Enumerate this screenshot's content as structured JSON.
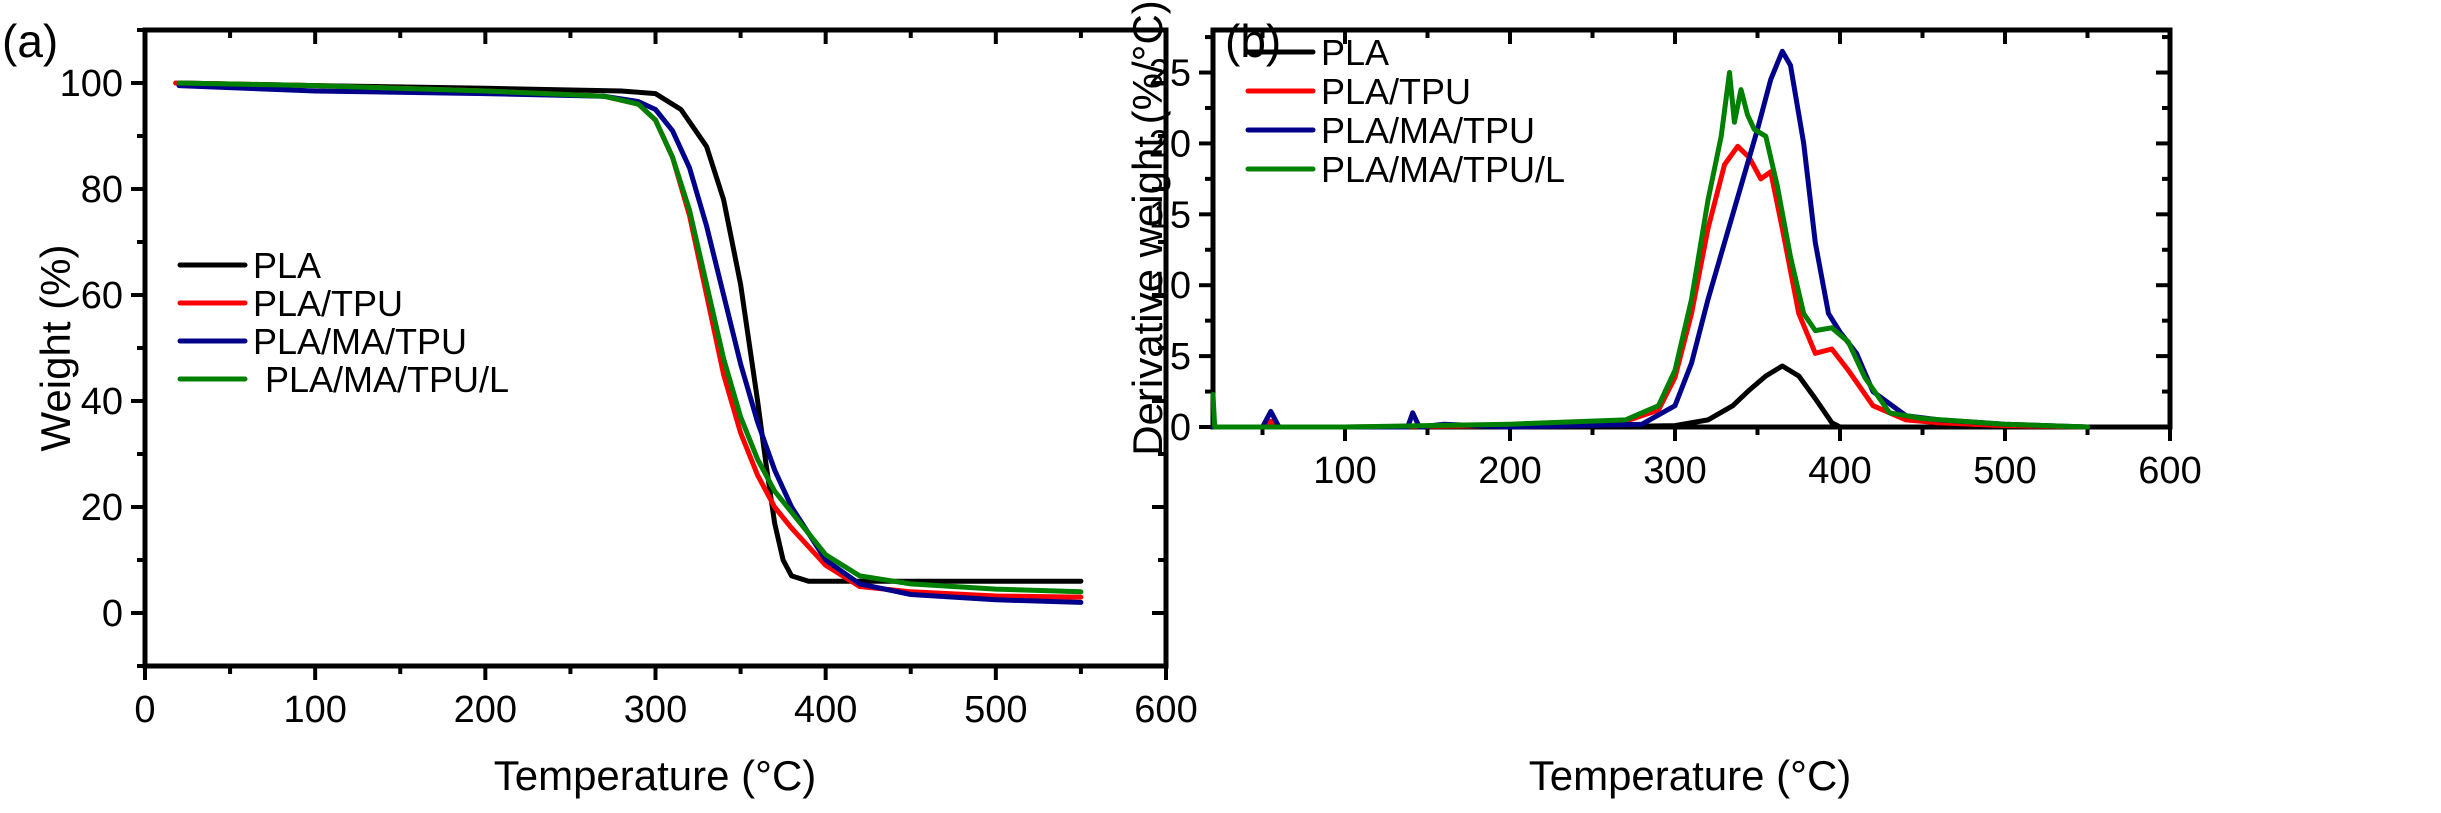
{
  "chart_data": [
    {
      "panel": "(a)",
      "type": "line",
      "title": "",
      "xlabel": "Temperature (°C)",
      "ylabel": "Weight (%)",
      "xlim": [
        0,
        600
      ],
      "ylim": [
        -10,
        110
      ],
      "xticks": [
        0,
        100,
        200,
        300,
        400,
        500,
        600
      ],
      "yticks": [
        0,
        20,
        40,
        60,
        80,
        100
      ],
      "grid": false,
      "legend_position": "bottom-left",
      "series": [
        {
          "name": "PLA",
          "color": "#000000",
          "x": [
            20,
            100,
            200,
            280,
            300,
            315,
            330,
            340,
            350,
            360,
            365,
            370,
            375,
            380,
            390,
            400,
            450,
            500,
            550
          ],
          "y": [
            100,
            99.5,
            99,
            98.5,
            98,
            95,
            88,
            78,
            62,
            40,
            28,
            17,
            10,
            7,
            6,
            6,
            6,
            6,
            6
          ]
        },
        {
          "name": "PLA/TPU",
          "color": "#ff0000",
          "x": [
            18,
            100,
            200,
            270,
            290,
            300,
            310,
            320,
            330,
            340,
            350,
            360,
            370,
            380,
            400,
            420,
            450,
            500,
            550
          ],
          "y": [
            100,
            99.5,
            98.5,
            97.5,
            96,
            93,
            86,
            75,
            60,
            45,
            34,
            26,
            20,
            16,
            9,
            5,
            4,
            3.2,
            3
          ]
        },
        {
          "name": "PLA/MA/TPU",
          "color": "#00008b",
          "x": [
            20,
            100,
            200,
            270,
            290,
            300,
            310,
            320,
            330,
            340,
            350,
            360,
            370,
            380,
            400,
            420,
            450,
            500,
            550
          ],
          "y": [
            99.5,
            98.5,
            98,
            97.5,
            96.5,
            95,
            91,
            84,
            73,
            60,
            47,
            36,
            27,
            20,
            10,
            5.5,
            3.5,
            2.5,
            2
          ]
        },
        {
          "name": "PLA/MA/TPU/L",
          "color": "#008000",
          "x": [
            20,
            100,
            200,
            270,
            290,
            300,
            310,
            320,
            330,
            340,
            350,
            360,
            370,
            380,
            400,
            420,
            450,
            500,
            550
          ],
          "y": [
            100,
            99.5,
            98.5,
            97.5,
            96,
            93,
            86,
            76,
            62,
            48,
            37,
            29,
            23,
            19,
            11,
            7,
            5.5,
            4.5,
            4
          ]
        }
      ]
    },
    {
      "panel": "(b)",
      "type": "line",
      "title": "",
      "xlabel": "Temperature (°C)",
      "ylabel": "Derivative weight (%/°C)",
      "xlim": [
        20,
        600
      ],
      "ylim": [
        0,
        28
      ],
      "xticks": [
        100,
        200,
        300,
        400,
        500,
        600
      ],
      "yticks": [
        0,
        5,
        10,
        15,
        20,
        25
      ],
      "grid": false,
      "legend_position": "top-left",
      "series": [
        {
          "name": "PLA",
          "color": "#000000",
          "x": [
            20,
            250,
            300,
            320,
            335,
            345,
            355,
            365,
            375,
            385,
            395,
            400,
            450,
            550
          ],
          "y": [
            0,
            0,
            0.1,
            0.5,
            1.5,
            2.6,
            3.6,
            4.3,
            3.6,
            2.0,
            0.3,
            0,
            0,
            0
          ]
        },
        {
          "name": "PLA/TPU",
          "color": "#ff0000",
          "x": [
            20,
            50,
            55,
            60,
            100,
            200,
            270,
            290,
            300,
            310,
            320,
            330,
            338,
            345,
            352,
            358,
            365,
            375,
            385,
            395,
            405,
            420,
            440,
            460,
            500,
            550
          ],
          "y": [
            0,
            0,
            0.4,
            0,
            0,
            0.1,
            0.4,
            1.2,
            3.5,
            8,
            14,
            18.5,
            19.8,
            19,
            17.5,
            18,
            14,
            8,
            5.2,
            5.5,
            4,
            1.5,
            0.5,
            0.3,
            0.1,
            0
          ]
        },
        {
          "name": "PLA/MA/TPU",
          "color": "#00008b",
          "x": [
            20,
            50,
            55,
            60,
            100,
            138,
            141,
            145,
            160,
            200,
            280,
            300,
            310,
            320,
            330,
            340,
            350,
            358,
            365,
            370,
            378,
            385,
            393,
            400,
            410,
            420,
            440,
            460,
            500,
            550
          ],
          "y": [
            0,
            0,
            1.1,
            0,
            0,
            0,
            1.0,
            0,
            0.2,
            0,
            0.2,
            1.5,
            4.5,
            9,
            13,
            17,
            21,
            24.5,
            26.5,
            25.5,
            20,
            13,
            8,
            6.7,
            5.2,
            2.5,
            0.8,
            0.5,
            0.2,
            0
          ]
        },
        {
          "name": "PLA/MA/TPU/L",
          "color": "#008000",
          "x": [
            20,
            21,
            23,
            50,
            100,
            200,
            270,
            290,
            300,
            310,
            320,
            328,
            333,
            336,
            340,
            344,
            348,
            355,
            362,
            370,
            378,
            385,
            395,
            405,
            415,
            430,
            450,
            500,
            550
          ],
          "y": [
            2.3,
            0,
            0,
            0,
            0,
            0.2,
            0.5,
            1.5,
            4,
            9,
            16,
            20.5,
            25,
            21.5,
            23.8,
            22,
            21,
            20.5,
            17,
            12,
            8,
            6.8,
            7,
            6,
            3.5,
            1,
            0.6,
            0.2,
            0
          ]
        }
      ]
    }
  ]
}
